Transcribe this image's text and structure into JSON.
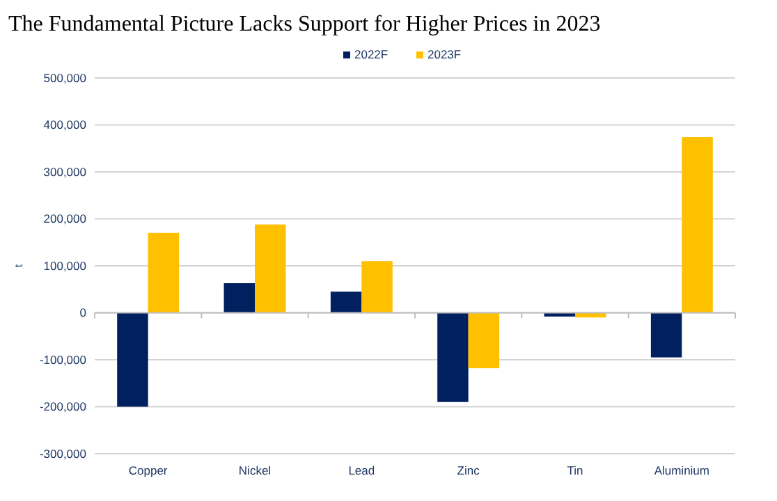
{
  "chart_data": {
    "type": "bar",
    "title": "The Fundamental Picture Lacks Support for Higher Prices in 2023",
    "ylabel": "t",
    "categories": [
      "Copper",
      "Nickel",
      "Lead",
      "Zinc",
      "Tin",
      "Aluminium"
    ],
    "series": [
      {
        "name": "2022F",
        "color": "#002060",
        "values": [
          -200000,
          63000,
          45000,
          -190000,
          -8000,
          -95000
        ]
      },
      {
        "name": "2023F",
        "color": "#ffc000",
        "values": [
          170000,
          188000,
          110000,
          -118000,
          -10000,
          374000
        ]
      }
    ],
    "ylim": [
      -300000,
      500000
    ],
    "yticks": [
      {
        "value": -300000,
        "label": "-300,000"
      },
      {
        "value": -200000,
        "label": "-200,000"
      },
      {
        "value": -100000,
        "label": "-100,000"
      },
      0,
      {
        "value": 100000,
        "label": "100,000"
      },
      {
        "value": 200000,
        "label": "200,000"
      },
      {
        "value": 300000,
        "label": "300,000"
      },
      {
        "value": 400000,
        "label": "400,000"
      },
      {
        "value": 500000,
        "label": "500,000"
      }
    ],
    "grid": "y",
    "legend": "top"
  }
}
